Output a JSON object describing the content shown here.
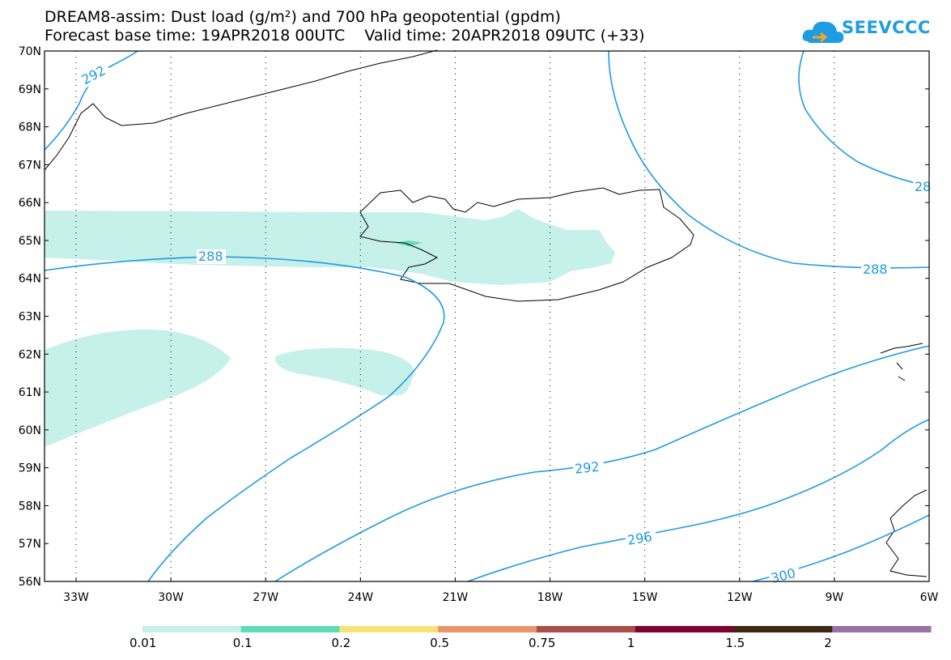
{
  "header": {
    "line1": "DREAM8-assim: Dust load (g/m²) and 700 hPa geopotential (gpdm)",
    "line2": "Forecast base time: 19APR2018 00UTC    Valid time: 20APR2018 09UTC (+33)"
  },
  "logo": {
    "text": "SEEVCCC",
    "color": "#1e9be2"
  },
  "map": {
    "lat_labels": [
      "70N",
      "69N",
      "68N",
      "67N",
      "66N",
      "65N",
      "64N",
      "63N",
      "62N",
      "61N",
      "60N",
      "59N",
      "58N",
      "57N",
      "56N"
    ],
    "lon_labels": [
      "33W",
      "30W",
      "27W",
      "24W",
      "21W",
      "18W",
      "15W",
      "12W",
      "9W",
      "6W"
    ],
    "contour_labels": {
      "c292_top": "292",
      "c288_left": "288",
      "c288_right": "288",
      "c28_edge": "28",
      "c292_mid": "292",
      "c296": "296",
      "c300": "300"
    },
    "contour_color": "#1e9be2",
    "dust_color_light": "#c6f0ea",
    "dust_color_mid": "#5fdcb6"
  },
  "colorbar": {
    "colors": [
      "#c6f0ea",
      "#5fdcb6",
      "#f5e37a",
      "#e8966a",
      "#a65047",
      "#7d0530",
      "#3c2a14",
      "#9b72a6"
    ],
    "labels": [
      "0.01",
      "0.1",
      "0.2",
      "0.5",
      "0.75",
      "1",
      "1.5",
      "2"
    ]
  }
}
